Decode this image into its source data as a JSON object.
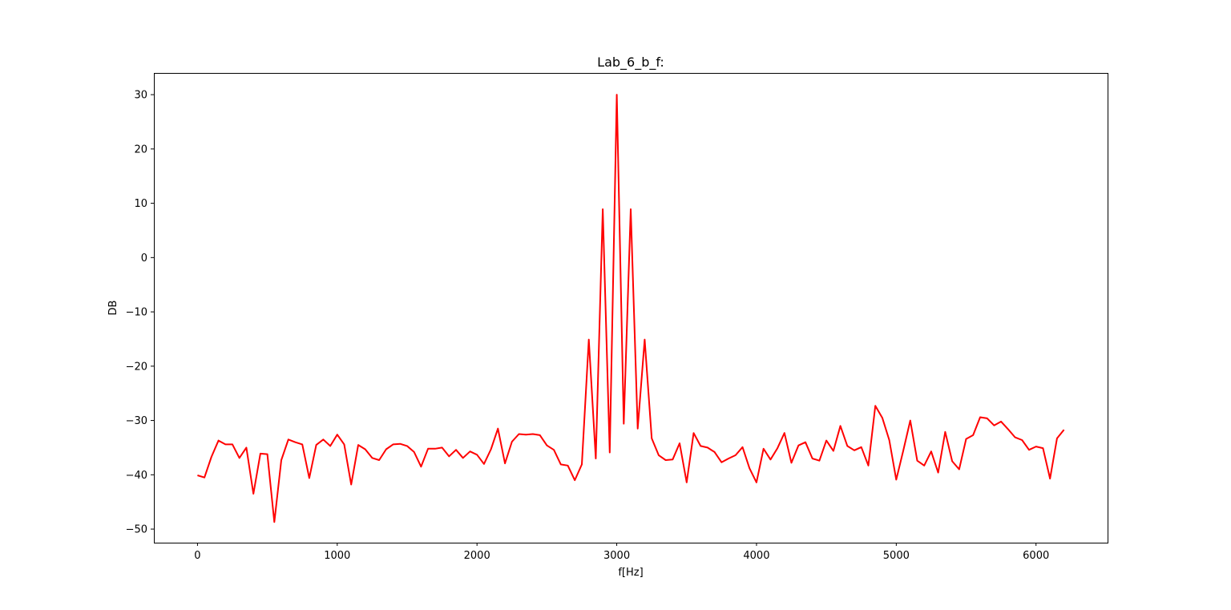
{
  "chart_data": {
    "type": "line",
    "title": "Lab_6_b_f:",
    "xlabel": "f[Hz]",
    "ylabel": "DB",
    "xlim": [
      -312,
      6512
    ],
    "ylim": [
      -52.5,
      34
    ],
    "xticks": [
      0,
      1000,
      2000,
      3000,
      4000,
      5000,
      6000
    ],
    "yticks": [
      30,
      20,
      10,
      0,
      -10,
      -20,
      -30,
      -40,
      -50
    ],
    "xtick_labels": [
      "0",
      "1000",
      "2000",
      "3000",
      "4000",
      "5000",
      "6000"
    ],
    "ytick_labels": [
      "30",
      "20",
      "10",
      "0",
      "−10",
      "−20",
      "−30",
      "−40",
      "−50"
    ],
    "grid": false,
    "series": [
      {
        "color": "#ff0000",
        "x": [
          0,
          50,
          100,
          150,
          200,
          250,
          300,
          350,
          400,
          450,
          500,
          550,
          600,
          650,
          700,
          750,
          800,
          850,
          900,
          950,
          1000,
          1050,
          1100,
          1150,
          1200,
          1250,
          1300,
          1350,
          1400,
          1450,
          1500,
          1550,
          1600,
          1650,
          1700,
          1750,
          1800,
          1850,
          1900,
          1950,
          2000,
          2050,
          2100,
          2150,
          2200,
          2250,
          2300,
          2350,
          2400,
          2450,
          2500,
          2550,
          2600,
          2650,
          2700,
          2750,
          2800,
          2850,
          2900,
          2950,
          3000,
          3050,
          3100,
          3150,
          3200,
          3250,
          3300,
          3350,
          3400,
          3450,
          3500,
          3550,
          3600,
          3650,
          3700,
          3750,
          3800,
          3850,
          3900,
          3950,
          4000,
          4050,
          4100,
          4150,
          4200,
          4250,
          4300,
          4350,
          4400,
          4450,
          4500,
          4550,
          4600,
          4650,
          4700,
          4750,
          4800,
          4850,
          4900,
          4950,
          5000,
          5050,
          5100,
          5150,
          5200,
          5250,
          5300,
          5350,
          5400,
          5450,
          5500,
          5550,
          5600,
          5650,
          5700,
          5750,
          5800,
          5850,
          5900,
          5950,
          6000,
          6050,
          6100,
          6150,
          6200
        ],
        "y": [
          -40.1,
          -40.5,
          -36.7,
          -33.7,
          -34.4,
          -34.4,
          -36.9,
          -35.0,
          -43.5,
          -36.1,
          -36.2,
          -48.7,
          -37.3,
          -33.5,
          -34.0,
          -34.4,
          -40.6,
          -34.5,
          -33.5,
          -34.7,
          -32.6,
          -34.4,
          -41.8,
          -34.5,
          -35.3,
          -36.9,
          -37.3,
          -35.3,
          -34.4,
          -34.3,
          -34.7,
          -35.8,
          -38.5,
          -35.2,
          -35.2,
          -35.0,
          -36.6,
          -35.4,
          -36.9,
          -35.7,
          -36.3,
          -38.0,
          -35.3,
          -31.5,
          -37.9,
          -33.9,
          -32.5,
          -32.6,
          -32.5,
          -32.7,
          -34.6,
          -35.4,
          -38.1,
          -38.3,
          -41.0,
          -38.1,
          -15.1,
          -37.0,
          8.9,
          -35.9,
          30.0,
          -30.6,
          8.9,
          -31.5,
          -15.1,
          -33.3,
          -36.4,
          -37.3,
          -37.2,
          -34.2,
          -41.4,
          -32.3,
          -34.7,
          -35.0,
          -35.8,
          -37.7,
          -37.0,
          -36.4,
          -34.9,
          -38.8,
          -41.4,
          -35.2,
          -37.2,
          -35.1,
          -32.3,
          -37.8,
          -34.6,
          -34.0,
          -37.0,
          -37.4,
          -33.7,
          -35.6,
          -31.0,
          -34.7,
          -35.5,
          -34.9,
          -38.3,
          -27.3,
          -29.5,
          -33.6,
          -40.9,
          -35.6,
          -30.0,
          -37.4,
          -38.3,
          -35.7,
          -39.6,
          -32.1,
          -37.5,
          -39.0,
          -33.4,
          -32.7,
          -29.4,
          -29.6,
          -30.9,
          -30.2,
          -31.6,
          -33.1,
          -33.6,
          -35.4,
          -34.8,
          -35.1,
          -40.7,
          -33.3,
          -31.7
        ]
      }
    ]
  }
}
